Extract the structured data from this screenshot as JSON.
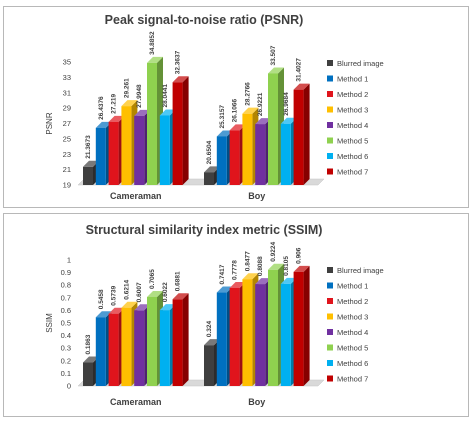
{
  "colors": [
    "#3f3f3f",
    "#0070c0",
    "#e0141c",
    "#ffbf00",
    "#7030a0",
    "#8fd14f",
    "#00b0f0",
    "#c00000"
  ],
  "chart_data": [
    {
      "type": "bar",
      "title": "Peak signal-to-noise ratio (PSNR)",
      "ylabel": "PSNR",
      "xlabel": "",
      "categories": [
        "Cameraman",
        "Boy"
      ],
      "ylim": [
        19,
        35
      ],
      "ytick_step": 2,
      "ytick_labels": [
        "19",
        "21",
        "23",
        "25",
        "27",
        "29",
        "31",
        "33",
        "35"
      ],
      "legend_position": "right",
      "grid": false,
      "series": [
        {
          "name": "Blurred image",
          "values": [
            21.3673,
            20.6504
          ],
          "labels": [
            "21.3673",
            "20.6504"
          ]
        },
        {
          "name": "Method 1",
          "values": [
            26.4376,
            25.3157
          ],
          "labels": [
            "26.4376",
            "25.3157"
          ]
        },
        {
          "name": "Method 2",
          "values": [
            27.219,
            26.1066
          ],
          "labels": [
            "27.219",
            "26.1066"
          ]
        },
        {
          "name": "Method 3",
          "values": [
            29.261,
            28.2766
          ],
          "labels": [
            "29.261",
            "28.2766"
          ]
        },
        {
          "name": "Method 4",
          "values": [
            27.9948,
            26.9221
          ],
          "labels": [
            "27.9948",
            "26.9221"
          ]
        },
        {
          "name": "Method 5",
          "values": [
            34.8852,
            33.507
          ],
          "labels": [
            "34.8852",
            "33.507"
          ]
        },
        {
          "name": "Method 6",
          "values": [
            28.0441,
            26.9684
          ],
          "labels": [
            "28.0441",
            "26.9684"
          ]
        },
        {
          "name": "Method 7",
          "values": [
            32.3637,
            31.4027
          ],
          "labels": [
            "32.3637",
            "31.4027"
          ]
        }
      ]
    },
    {
      "type": "bar",
      "title": "Structural similarity index metric (SSIM)",
      "ylabel": "SSIM",
      "xlabel": "",
      "categories": [
        "Cameraman",
        "Boy"
      ],
      "ylim": [
        0,
        1
      ],
      "ytick_step": 0.1,
      "ytick_labels": [
        "0",
        "0.1",
        "0.2",
        "0.3",
        "0.4",
        "0.5",
        "0.6",
        "0.7",
        "0.8",
        "0.9",
        "1"
      ],
      "legend_position": "right",
      "grid": false,
      "series": [
        {
          "name": "Blurred image",
          "values": [
            0.1863,
            0.324
          ],
          "labels": [
            "0.1863",
            "0.324"
          ]
        },
        {
          "name": "Method 1",
          "values": [
            0.5458,
            0.7417
          ],
          "labels": [
            "0.5458",
            "0.7417"
          ]
        },
        {
          "name": "Method 2",
          "values": [
            0.5739,
            0.7778
          ],
          "labels": [
            "0.5739",
            "0.7778"
          ]
        },
        {
          "name": "Method 3",
          "values": [
            0.6214,
            0.8477
          ],
          "labels": [
            "0.6214",
            "0.8477"
          ]
        },
        {
          "name": "Method 4",
          "values": [
            0.6007,
            0.8088
          ],
          "labels": [
            "0.6007",
            "0.8088"
          ]
        },
        {
          "name": "Method 5",
          "values": [
            0.7065,
            0.9224
          ],
          "labels": [
            "0.7065",
            "0.9224"
          ]
        },
        {
          "name": "Method 6",
          "values": [
            0.6022,
            0.8105
          ],
          "labels": [
            "0.6022",
            "0.8105"
          ]
        },
        {
          "name": "Method 7",
          "values": [
            0.6881,
            0.906
          ],
          "labels": [
            "0.6881",
            "0.906"
          ]
        }
      ]
    }
  ]
}
